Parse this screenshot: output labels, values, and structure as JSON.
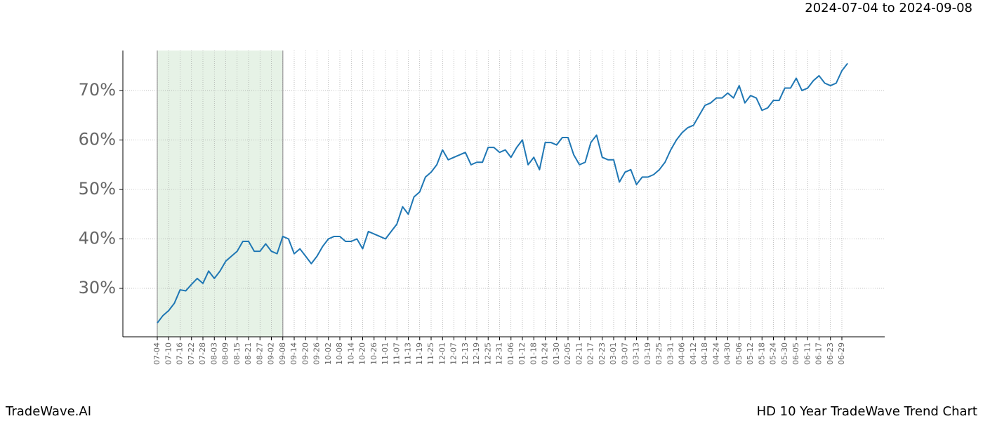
{
  "chart_data": {
    "type": "line",
    "subtitle": "2024-07-04 to 2024-09-08",
    "footer_left": "TradeWave.AI",
    "footer_right": "HD 10 Year TradeWave Trend Chart",
    "categories": [
      "07-04",
      null,
      "07-10",
      null,
      "07-16",
      null,
      "07-22",
      null,
      "07-28",
      null,
      "08-03",
      null,
      "08-09",
      null,
      "08-15",
      null,
      "08-21",
      null,
      "08-27",
      null,
      "09-02",
      null,
      "09-08",
      null,
      "09-14",
      null,
      "09-20",
      null,
      "09-26",
      null,
      "10-02",
      null,
      "10-08",
      null,
      "10-14",
      null,
      "10-20",
      null,
      "10-26",
      null,
      "11-01",
      null,
      "11-07",
      null,
      "11-13",
      null,
      "11-19",
      null,
      "11-25",
      null,
      "12-01",
      null,
      "12-07",
      null,
      "12-13",
      null,
      "12-19",
      null,
      "12-25",
      null,
      "12-31",
      null,
      "01-06",
      null,
      "01-12",
      null,
      "01-18",
      null,
      "01-24",
      null,
      "01-30",
      null,
      "02-05",
      null,
      "02-11",
      null,
      "02-17",
      null,
      "02-23",
      null,
      "03-01",
      null,
      "03-07",
      null,
      "03-13",
      null,
      "03-19",
      null,
      "03-25",
      null,
      "03-31",
      null,
      "04-06",
      null,
      "04-12",
      null,
      "04-18",
      null,
      "04-24",
      null,
      "04-30",
      null,
      "05-06",
      null,
      "05-12",
      null,
      "05-18",
      null,
      "05-24",
      null,
      "05-30",
      null,
      "06-05",
      null,
      "06-11",
      null,
      "06-17",
      null,
      "06-23",
      null,
      "06-29",
      null
    ],
    "series": [
      {
        "color": "#1f77b4",
        "values": [
          23.0,
          24.5,
          25.5,
          27.0,
          29.7,
          29.5,
          30.8,
          32.0,
          31.0,
          33.5,
          32.0,
          33.5,
          35.5,
          36.5,
          37.5,
          39.5,
          39.5,
          37.5,
          37.5,
          39.0,
          37.5,
          37.0,
          40.5,
          40.0,
          37.0,
          38.0,
          36.5,
          35.0,
          36.5,
          38.5,
          40.0,
          40.5,
          40.5,
          39.5,
          39.5,
          40.0,
          38.0,
          41.5,
          41.0,
          40.5,
          40.0,
          41.5,
          43.0,
          46.5,
          45.0,
          48.5,
          49.5,
          52.5,
          53.5,
          55.0,
          58.0,
          56.0,
          56.5,
          57.0,
          57.5,
          55.0,
          55.5,
          55.5,
          58.5,
          58.5,
          57.5,
          58.0,
          56.5,
          58.5,
          60.0,
          55.0,
          56.5,
          54.0,
          59.5,
          59.5,
          59.0,
          60.5,
          60.5,
          57.0,
          55.0,
          55.5,
          59.5,
          61.0,
          56.5,
          56.0,
          56.0,
          51.5,
          53.5,
          54.0,
          51.0,
          52.5,
          52.5,
          53.0,
          54.0,
          55.5,
          58.0,
          60.0,
          61.5,
          62.5,
          63.0,
          65.0,
          67.0,
          67.5,
          68.5,
          68.5,
          69.5,
          68.5,
          71.0,
          67.5,
          69.0,
          68.5,
          66.0,
          66.5,
          68.0,
          68.0,
          70.5,
          70.5,
          72.5,
          70.0,
          70.5,
          72.0,
          73.0,
          71.5,
          71.0,
          71.5,
          74.0,
          75.5
        ]
      }
    ],
    "ylim": [
      20.2,
      78.1
    ],
    "yticks": [
      {
        "value": 30,
        "label": "30%"
      },
      {
        "value": 40,
        "label": "40%"
      },
      {
        "value": 50,
        "label": "50%"
      },
      {
        "value": 60,
        "label": "60%"
      },
      {
        "value": 70,
        "label": "70%"
      }
    ],
    "grid": true,
    "shade_color": "#e6f2e6"
  }
}
